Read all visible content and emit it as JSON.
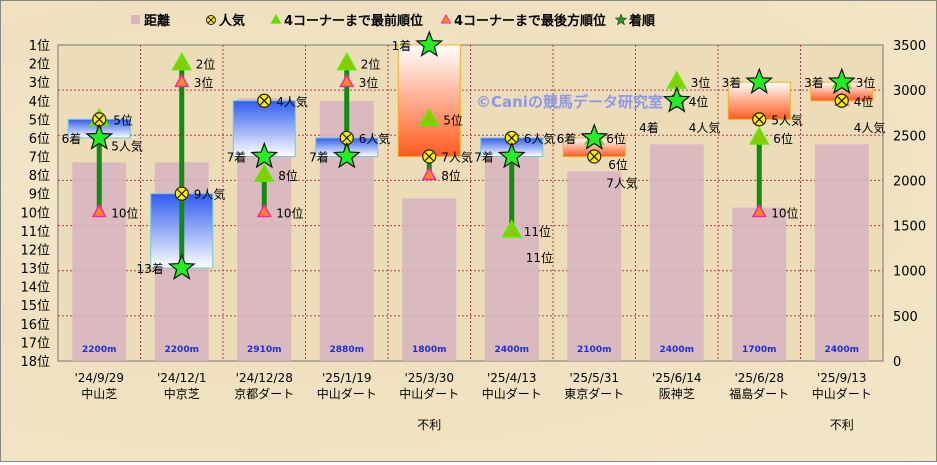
{
  "chart_data": {
    "type": "bar+marker",
    "legend": [
      {
        "label": "距離",
        "color": "#d8b4c0",
        "marker": "square"
      },
      {
        "label": "人気",
        "color": "#ffee00",
        "marker": "circle-x"
      },
      {
        "label": "4コーナーまで最前順位",
        "color": "#66dd00",
        "marker": "triangle"
      },
      {
        "label": "4コーナーまで最後方順位",
        "color": "#ff8c1a",
        "marker": "triangle-small"
      },
      {
        "label": "着順",
        "color": "#22ee22",
        "marker": "star"
      }
    ],
    "legend_placement": "top",
    "left_axis": {
      "ticks": [
        "1位",
        "2位",
        "3位",
        "4位",
        "5位",
        "6位",
        "7位",
        "8位",
        "9位",
        "10位",
        "11位",
        "12位",
        "13位",
        "14位",
        "15位",
        "16位",
        "17位",
        "18位"
      ],
      "range": [
        1,
        18
      ],
      "inverted": true
    },
    "right_axis": {
      "ticks": [
        0,
        500,
        1000,
        1500,
        2000,
        2500,
        3000,
        3500
      ],
      "range": [
        0,
        3500
      ]
    },
    "grid": true,
    "watermark": "©Caniの競馬データ研究室",
    "races": [
      {
        "date": "'24/9/29",
        "course": "中山芝",
        "distance": 2200,
        "distance_label": "2200m",
        "popularity": 5,
        "first_pos": 5,
        "last_pos": 10,
        "finish": 6,
        "line": [
          5,
          10
        ],
        "note": ""
      },
      {
        "date": "'24/12/1",
        "course": "中京芝",
        "distance": 2200,
        "distance_label": "2200m",
        "popularity": 9,
        "first_pos": 2,
        "last_pos": 3,
        "finish": 13,
        "line": [
          2,
          13
        ],
        "note": ""
      },
      {
        "date": "'24/12/28",
        "course": "京都ダート",
        "distance": 2910,
        "distance_label": "2910m",
        "popularity": 4,
        "first_pos": 8,
        "last_pos": 10,
        "finish": 7,
        "line": [
          8,
          10
        ],
        "note": ""
      },
      {
        "date": "'25/1/19",
        "course": "中山ダート",
        "distance": 2880,
        "distance_label": "2880m",
        "popularity": 6,
        "first_pos": 2,
        "last_pos": 3,
        "finish": 7,
        "line": [
          2,
          7
        ],
        "note": ""
      },
      {
        "date": "'25/3/30",
        "course": "中山ダート",
        "distance": 1800,
        "distance_label": "1800m",
        "popularity": 7,
        "first_pos": 5,
        "last_pos": 8,
        "finish": 1,
        "line": [
          7,
          8
        ],
        "note": "不利"
      },
      {
        "date": "'25/4/13",
        "course": "中山ダート",
        "distance": 2400,
        "distance_label": "2400m",
        "popularity": 6,
        "first_pos": 11,
        "last_pos": 11,
        "finish": 7,
        "line": [
          7,
          11
        ],
        "note": ""
      },
      {
        "date": "'25/5/31",
        "course": "東京ダート",
        "distance": 2100,
        "distance_label": "2100m",
        "popularity": 7,
        "first_pos": 6,
        "last_pos": 6,
        "finish": 6,
        "line": null,
        "note": ""
      },
      {
        "date": "'25/6/14",
        "course": "阪神芝",
        "distance": 2400,
        "distance_label": "2400m",
        "popularity": 4,
        "first_pos": 3,
        "last_pos": 4,
        "finish": 4,
        "line": null,
        "note": ""
      },
      {
        "date": "'25/6/28",
        "course": "福島ダート",
        "distance": 1700,
        "distance_label": "1700m",
        "popularity": 5,
        "first_pos": 6,
        "last_pos": 10,
        "finish": 3,
        "line": [
          6,
          10
        ],
        "note": ""
      },
      {
        "date": "'25/9/13",
        "course": "中山ダート",
        "distance": 2400,
        "distance_label": "2400m",
        "popularity": 4,
        "first_pos": 3,
        "last_pos": 4,
        "finish": 3,
        "line": null,
        "note": "不利"
      }
    ]
  },
  "suffix": {
    "popularity": "人気",
    "position": "位",
    "finish": "着"
  }
}
